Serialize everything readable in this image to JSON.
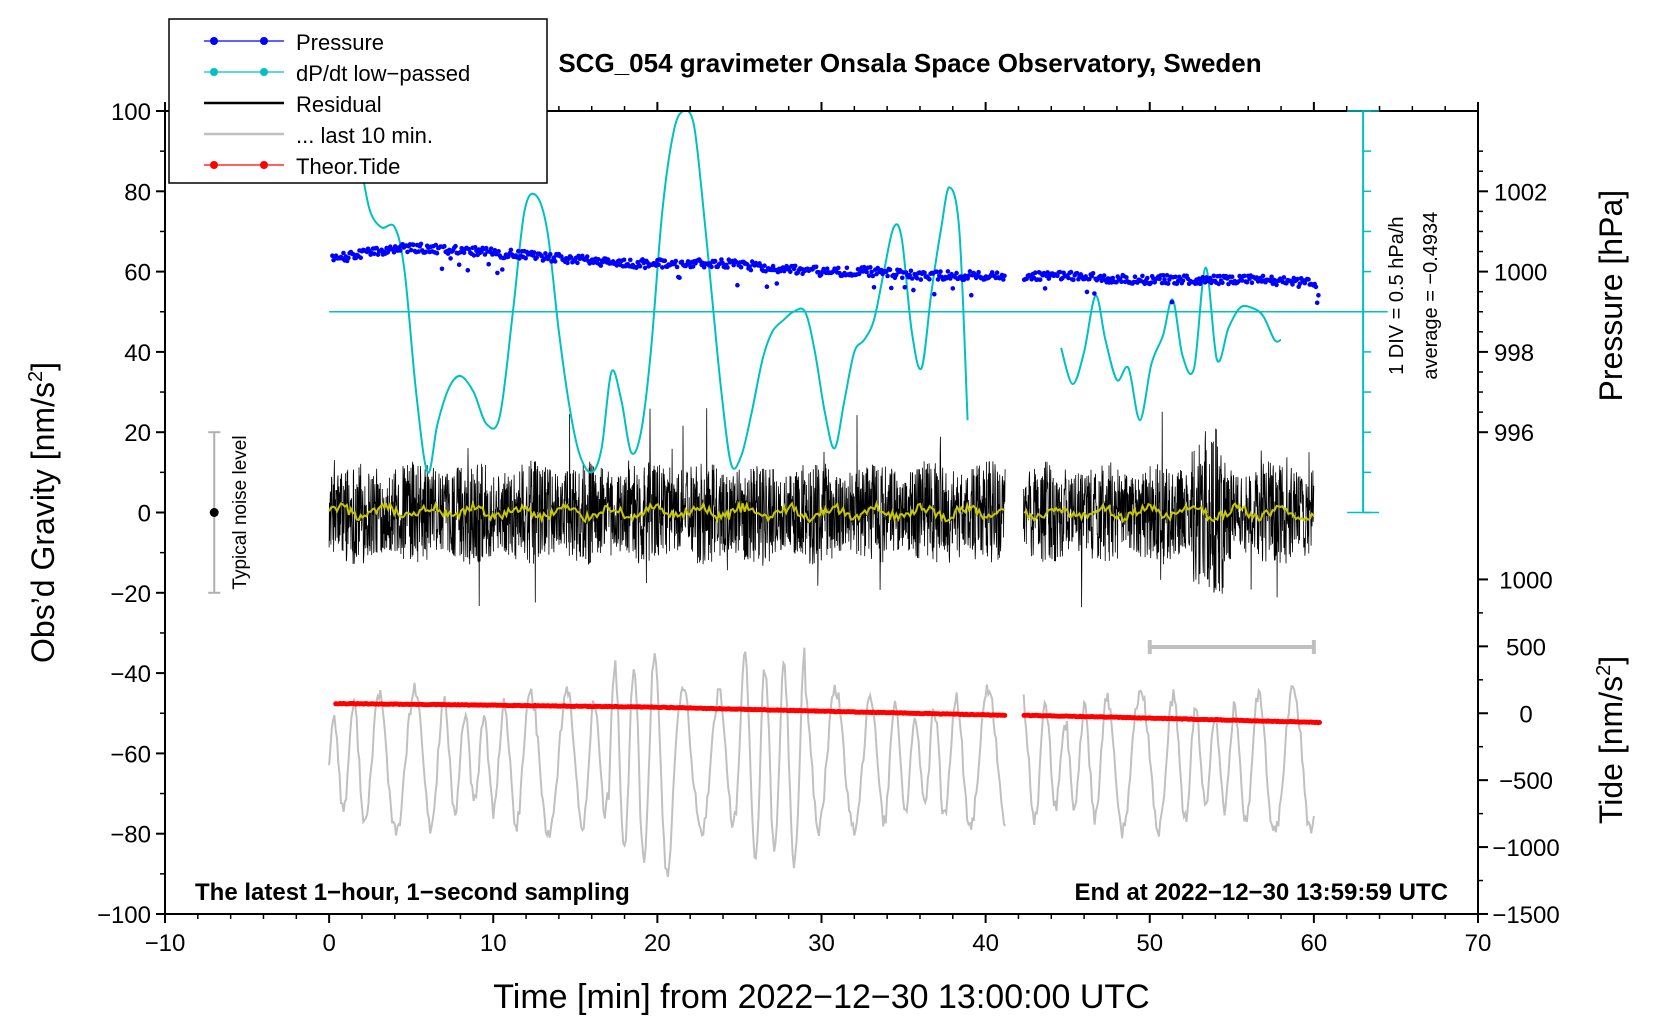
{
  "chart_data": {
    "type": "line",
    "title": "SCG_054 gravimeter Onsala Space Observatory, Sweden",
    "xlabel": "Time [min] from 2022−12−30 13:00:00 UTC",
    "ylabel_main": "Obs’d Gravity [nm/s",
    "ylabel_main_sup": "2",
    "ylabel_main_close": "]",
    "ylabel_pressure": "Pressure [hPa]",
    "ylabel_tide": "Tide [nm/s",
    "ylabel_tide_sup": "2",
    "ylabel_tide_close": "]",
    "xlim": [
      -10,
      70
    ],
    "ylim": [
      -100,
      100
    ],
    "x_ticks": [
      {
        "v": -10,
        "label": "−10"
      },
      {
        "v": 0,
        "label": "0"
      },
      {
        "v": 10,
        "label": "10"
      },
      {
        "v": 20,
        "label": "20"
      },
      {
        "v": 30,
        "label": "30"
      },
      {
        "v": 40,
        "label": "40"
      },
      {
        "v": 50,
        "label": "50"
      },
      {
        "v": 60,
        "label": "60"
      },
      {
        "v": 70,
        "label": "70"
      }
    ],
    "y_ticks": [
      {
        "v": -100,
        "label": "−100"
      },
      {
        "v": -80,
        "label": "−80"
      },
      {
        "v": -60,
        "label": "−60"
      },
      {
        "v": -40,
        "label": "−40"
      },
      {
        "v": -20,
        "label": "−20"
      },
      {
        "v": 0,
        "label": "0"
      },
      {
        "v": 20,
        "label": "20"
      },
      {
        "v": 40,
        "label": "40"
      },
      {
        "v": 60,
        "label": "60"
      },
      {
        "v": 80,
        "label": "80"
      },
      {
        "v": 100,
        "label": "100"
      }
    ],
    "pressure_axis": {
      "y_at_996": 20,
      "y_per_hPa": 10,
      "ticks": [
        {
          "v": 996,
          "label": "996"
        },
        {
          "v": 998,
          "label": "998"
        },
        {
          "v": 1000,
          "label": "1000"
        },
        {
          "v": 1002,
          "label": "1002"
        }
      ]
    },
    "tide_axis": {
      "y_at_0": -50,
      "y_per_unit": 0.03333,
      "ticks": [
        {
          "v": -1500,
          "label": "−1500"
        },
        {
          "v": -1000,
          "label": "−1000"
        },
        {
          "v": -500,
          "label": "−500"
        },
        {
          "v": 0,
          "label": "0"
        },
        {
          "v": 500,
          "label": "500"
        },
        {
          "v": 1000,
          "label": "1000"
        }
      ]
    },
    "legend": {
      "position": "top-left",
      "entries": [
        {
          "label": "Pressure",
          "color": "#0000ff",
          "style": "dot-line"
        },
        {
          "label": "dP/dt low−passed",
          "color": "#00c0c0",
          "style": "dot-line"
        },
        {
          "label": "Residual",
          "color": "#000000",
          "style": "line"
        },
        {
          "label": "... last 10 min.",
          "color": "#c0c0c0",
          "style": "line"
        },
        {
          "label": "Theor.Tide",
          "color": "#ff0000",
          "style": "dot-line"
        }
      ]
    },
    "noise_bar": {
      "x": -7,
      "y": 0,
      "low": -20,
      "high": 20,
      "label": "Typical noise level"
    },
    "dpdt_scale": {
      "label1": "1 DIV = 0.5 hPa/h",
      "label2": "average = −0.4934",
      "x": 63,
      "baseline_y": 50,
      "top": 100,
      "bottom": 0
    },
    "last10_marker": {
      "x0": 50,
      "x1": 60,
      "y": -33.5
    },
    "annotations": {
      "bottom_left": "The latest 1−hour, 1−second sampling",
      "bottom_right": "End at 2022−12−30 13:59:59 UTC"
    },
    "gap": {
      "start": 41.2,
      "end": 42.3
    },
    "series": [
      {
        "name": "Pressure",
        "color": "#0000ff",
        "x": [
          0,
          3,
          5,
          9,
          12,
          15,
          18,
          21,
          24,
          27,
          30,
          33,
          36,
          39,
          41,
          42.3,
          45,
          48,
          51,
          54,
          57,
          60
        ],
        "y": [
          1000.3,
          1000.5,
          1000.6,
          1000.5,
          1000.4,
          1000.3,
          1000.2,
          1000.2,
          1000.2,
          1000.1,
          1000.0,
          1000.0,
          999.9,
          999.9,
          999.9,
          999.9,
          999.9,
          999.8,
          999.8,
          999.8,
          999.8,
          999.7
        ]
      },
      {
        "name": "dP/dt low-passed",
        "color": "#00c0c0",
        "x": [
          2,
          2.5,
          3.2,
          4,
          4.6,
          5.3,
          6,
          6.6,
          7.3,
          8,
          8.8,
          9.6,
          10.4,
          11.2,
          11.9,
          12.6,
          13.3,
          14,
          14.7,
          15.3,
          16,
          16.6,
          17.2,
          17.8,
          18.4,
          19,
          19.6,
          20.3,
          21,
          21.6,
          22.2,
          22.7,
          23.3,
          23.9,
          24.5,
          25.1,
          25.7,
          26.4,
          27,
          27.7,
          28.3,
          29,
          29.6,
          30.2,
          30.8,
          31.4,
          32,
          32.6,
          33.2,
          33.8,
          34.4,
          34.9,
          35.5,
          36.1,
          36.7,
          37.3,
          37.8,
          38.4,
          38.9,
          44.6,
          45.3,
          46,
          46.7,
          47.3,
          48,
          48.7,
          49.4,
          50.1,
          50.8,
          51.4,
          52,
          52.7,
          53.4,
          54.1,
          54.8,
          55.5,
          56.2,
          56.9,
          57.6,
          58
        ],
        "y": [
          85,
          75,
          71,
          71,
          60,
          30,
          10,
          22,
          31,
          34,
          30,
          22,
          24,
          50,
          75,
          79,
          70,
          45,
          25,
          14,
          10,
          16,
          35,
          28,
          15,
          20,
          40,
          75,
          95,
          100,
          97,
          80,
          55,
          30,
          12,
          14,
          24,
          38,
          45,
          48,
          50,
          50,
          40,
          25,
          16,
          28,
          40,
          43,
          48,
          60,
          71,
          68,
          45,
          36,
          55,
          71,
          81,
          70,
          23,
          41,
          32,
          40,
          54,
          43,
          33,
          36,
          23,
          37,
          44,
          53,
          39,
          36,
          61,
          38,
          46,
          51,
          51,
          49,
          43,
          43
        ]
      },
      {
        "name": "Theor.Tide",
        "color": "#ff0000",
        "x": [
          0.5,
          10,
          20,
          30,
          41,
          42.3,
          50,
          60.3
        ],
        "y": [
          -47.6,
          -48.0,
          -48.5,
          -49.5,
          -50.5,
          -50.5,
          -51.2,
          -52.3
        ]
      }
    ]
  }
}
